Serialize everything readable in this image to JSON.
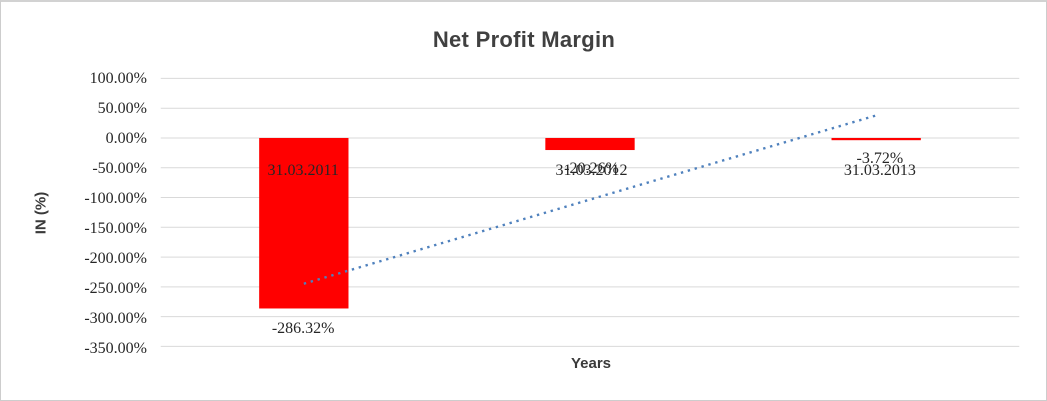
{
  "chart_data": {
    "type": "bar",
    "title": "Net Profit Margin",
    "xlabel": "Years",
    "ylabel": "IN (%)",
    "categories": [
      "31.03.2011",
      "31.03.2012",
      "31.03.2013"
    ],
    "values": [
      -286.32,
      -20.26,
      -3.72
    ],
    "data_labels": [
      "-286.32%",
      "-20.26%",
      "-3.72%"
    ],
    "ytick_labels": [
      "100.00%",
      "50.00%",
      "0.00%",
      "-50.00%",
      "-100.00%",
      "-150.00%",
      "-200.00%",
      "-250.00%",
      "-300.00%",
      "-350.00%"
    ],
    "ylim": [
      -350,
      100
    ],
    "grid": true,
    "legend": "none",
    "bar_color": "#ff0000",
    "trendline": {
      "type": "linear",
      "style": "dotted",
      "color": "#4f81bd",
      "start_value": -244.73,
      "end_value": 37.86
    },
    "colors": {
      "gridline": "#d9d9d9",
      "title": "#404040",
      "axis_title": "#3a3a3a",
      "tick_label": "#262626",
      "border": "#cdcdcd"
    }
  }
}
